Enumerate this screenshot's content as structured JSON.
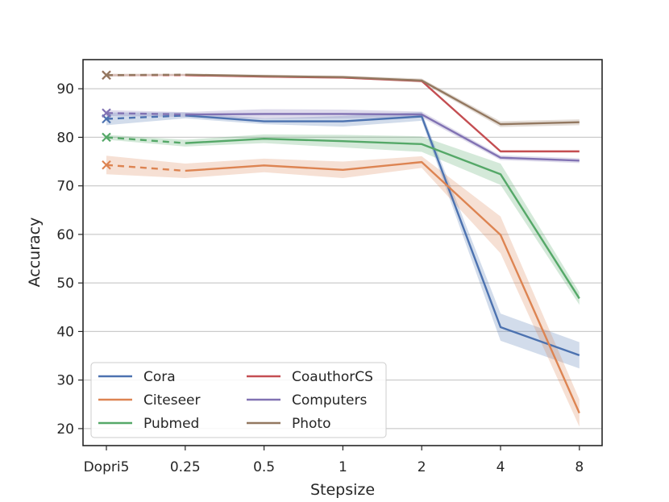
{
  "chart_data": {
    "type": "line",
    "title": "",
    "xlabel": "Stepsize",
    "ylabel": "Accuracy",
    "categories": [
      "Dopri5",
      "0.25",
      "0.5",
      "1",
      "2",
      "4",
      "8"
    ],
    "ylim": [
      16.5,
      96
    ],
    "yticks": [
      20,
      30,
      40,
      50,
      60,
      70,
      80,
      90
    ],
    "grid": "horizontal",
    "legend_position": "lower-left",
    "series": [
      {
        "name": "Cora",
        "color": "#4c72b0",
        "values": [
          83.8,
          84.5,
          83.3,
          83.3,
          84.3,
          40.9,
          35.1
        ],
        "band": [
          1.3,
          0.6,
          0.6,
          1.1,
          0.9,
          2.8,
          2.7
        ]
      },
      {
        "name": "Citeseer",
        "color": "#dd8452",
        "values": [
          74.3,
          73.1,
          74.2,
          73.3,
          74.9,
          59.9,
          23.2
        ],
        "band": [
          1.9,
          1.5,
          1.4,
          1.7,
          1.2,
          3.8,
          2.8
        ]
      },
      {
        "name": "Pubmed",
        "color": "#55a868",
        "values": [
          80.0,
          78.8,
          79.7,
          79.2,
          78.6,
          72.4,
          46.8
        ],
        "band": [
          0.5,
          0.7,
          0.9,
          1.3,
          1.6,
          2.2,
          1.3
        ]
      },
      {
        "name": "CoauthorCS",
        "color": "#c44e52",
        "values": [
          92.8,
          92.8,
          92.5,
          92.3,
          91.6,
          77.1,
          77.1
        ],
        "band": [
          0.2,
          0.2,
          0.2,
          0.2,
          0.2,
          0.2,
          0.2
        ]
      },
      {
        "name": "Computers",
        "color": "#8172b3",
        "values": [
          85.0,
          84.7,
          84.8,
          84.8,
          84.7,
          75.8,
          75.2
        ],
        "band": [
          0.6,
          0.5,
          1.0,
          0.9,
          0.6,
          0.5,
          0.5
        ]
      },
      {
        "name": "Photo",
        "color": "#937860",
        "values": [
          92.8,
          92.9,
          92.6,
          92.4,
          91.7,
          82.7,
          83.1
        ],
        "band": [
          0.3,
          0.2,
          0.3,
          0.3,
          0.4,
          0.6,
          0.6
        ]
      }
    ],
    "first_segment_style": "dashed",
    "first_point_marker": "x"
  }
}
